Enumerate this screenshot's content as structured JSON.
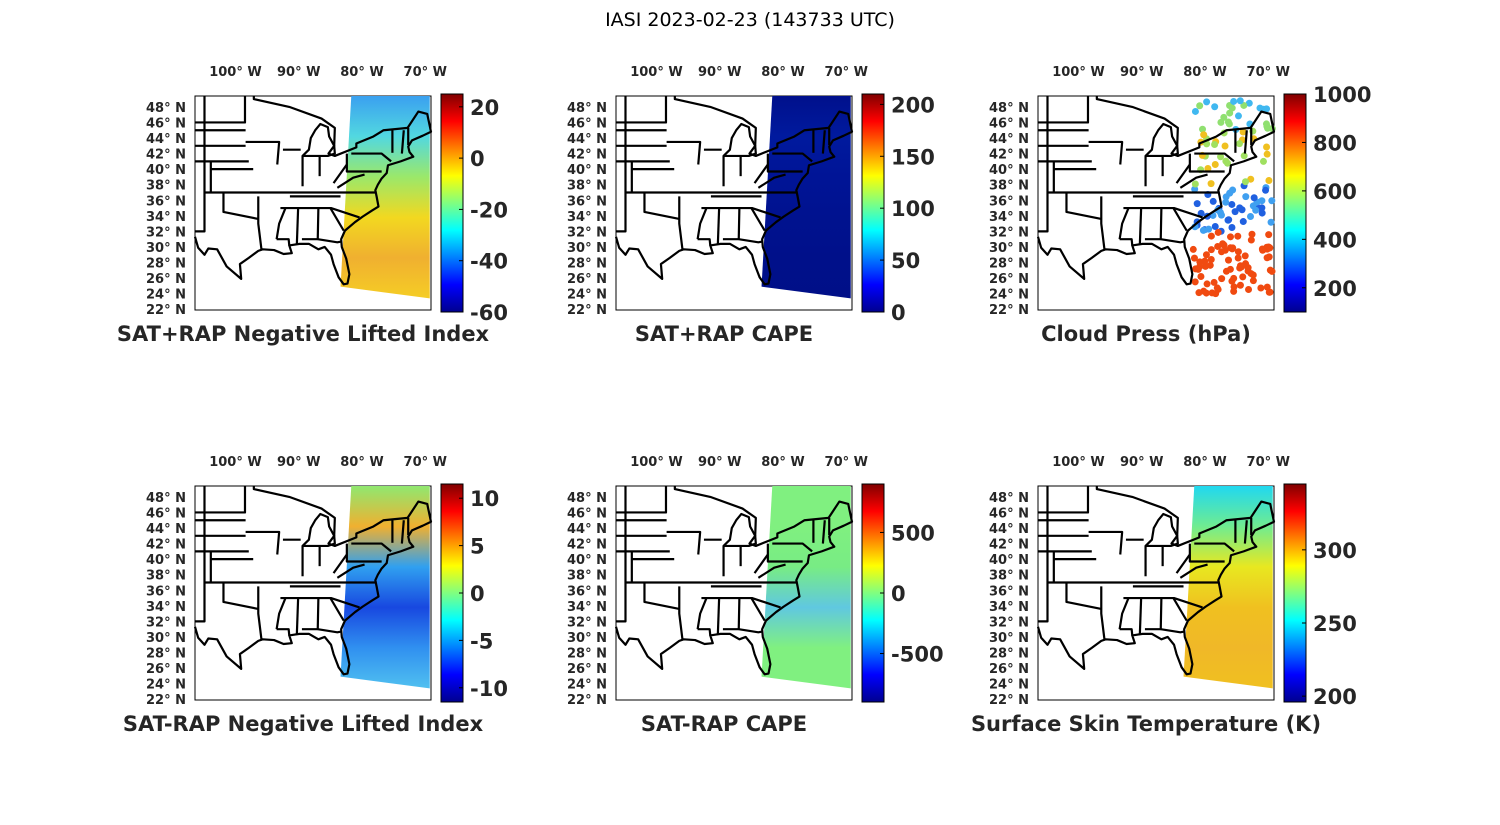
{
  "title": "IASI 2023-02-23 (143733 UTC)",
  "chart_data": [
    {
      "type": "scatter",
      "title": "SAT+RAP Negative Lifted Index",
      "lon_ticks": [
        "100° W",
        "90° W",
        "80° W",
        "70° W"
      ],
      "lat_ticks": [
        "48° N",
        "46° N",
        "44° N",
        "42° N",
        "40° N",
        "38° N",
        "36° N",
        "34° N",
        "32° N",
        "30° N",
        "28° N",
        "26° N",
        "24° N",
        "22° N"
      ],
      "colorbar": {
        "colormap": "jet",
        "range": [
          -60,
          25
        ],
        "ticks": [
          20,
          0,
          -20,
          -40,
          -60
        ],
        "tick_labels": [
          "20",
          "0",
          "-20",
          "-40",
          "-60"
        ]
      },
      "swath_colors": [
        "#3aa0f0",
        "#52d8e0",
        "#9be86a",
        "#f2d820",
        "#f0b030",
        "#f5cd25"
      ]
    },
    {
      "type": "scatter",
      "title": "SAT+RAP CAPE",
      "lon_ticks": [
        "100° W",
        "90° W",
        "80° W",
        "70° W"
      ],
      "lat_ticks": [
        "48° N",
        "46° N",
        "44° N",
        "42° N",
        "40° N",
        "38° N",
        "36° N",
        "34° N",
        "32° N",
        "30° N",
        "28° N",
        "26° N",
        "24° N",
        "22° N"
      ],
      "colorbar": {
        "colormap": "jet",
        "range": [
          0,
          210
        ],
        "ticks": [
          200,
          150,
          100,
          50,
          0
        ],
        "tick_labels": [
          "200",
          "150",
          "100",
          "50",
          "0"
        ]
      },
      "swath_colors": [
        "#00108c",
        "#001a9e",
        "#001496",
        "#00128f",
        "#00108a",
        "#000f88"
      ]
    },
    {
      "type": "scatter",
      "title": "Cloud Press (hPa)",
      "lon_ticks": [
        "100° W",
        "90° W",
        "80° W",
        "70° W"
      ],
      "lat_ticks": [
        "48° N",
        "46° N",
        "44° N",
        "42° N",
        "40° N",
        "38° N",
        "36° N",
        "34° N",
        "32° N",
        "30° N",
        "28° N",
        "26° N",
        "24° N",
        "22° N"
      ],
      "colorbar": {
        "colormap": "jet",
        "range": [
          100,
          1000
        ],
        "ticks": [
          1000,
          800,
          600,
          400,
          200
        ],
        "tick_labels": [
          "1000",
          "800",
          "600",
          "400",
          "200"
        ]
      },
      "swath_colors": [
        "#40b8f0",
        "#90e070",
        "#f0c020",
        "#2060e0",
        "#f04010",
        "#f05a10"
      ]
    },
    {
      "type": "scatter",
      "title": "SAT-RAP Negative Lifted Index",
      "lon_ticks": [
        "100° W",
        "90° W",
        "80° W",
        "70° W"
      ],
      "lat_ticks": [
        "48° N",
        "46° N",
        "44° N",
        "42° N",
        "40° N",
        "38° N",
        "36° N",
        "34° N",
        "32° N",
        "30° N",
        "28° N",
        "26° N",
        "24° N",
        "22° N"
      ],
      "colorbar": {
        "colormap": "jet",
        "range": [
          -11.5,
          11.5
        ],
        "ticks": [
          10,
          5,
          0,
          -5,
          -10
        ],
        "tick_labels": [
          "10",
          "5",
          "0",
          "-5",
          "-10"
        ]
      },
      "swath_colors": [
        "#90e870",
        "#f0b030",
        "#30a0f0",
        "#1848e0",
        "#3090f0",
        "#50c0f0"
      ]
    },
    {
      "type": "scatter",
      "title": "SAT-RAP CAPE",
      "lon_ticks": [
        "100° W",
        "90° W",
        "80° W",
        "70° W"
      ],
      "lat_ticks": [
        "48° N",
        "46° N",
        "44° N",
        "42° N",
        "40° N",
        "38° N",
        "36° N",
        "34° N",
        "32° N",
        "30° N",
        "28° N",
        "26° N",
        "24° N",
        "22° N"
      ],
      "colorbar": {
        "colormap": "jet",
        "range": [
          -900,
          900
        ],
        "ticks": [
          500,
          0,
          -500
        ],
        "tick_labels": [
          "500",
          "0",
          "-500"
        ]
      },
      "swath_colors": [
        "#80f080",
        "#80f080",
        "#78ec84",
        "#60c8e0",
        "#80f080",
        "#80f080"
      ]
    },
    {
      "type": "scatter",
      "title": "Surface Skin Temperature (K)",
      "lon_ticks": [
        "100° W",
        "90° W",
        "80° W",
        "70° W"
      ],
      "lat_ticks": [
        "48° N",
        "46° N",
        "44° N",
        "42° N",
        "40° N",
        "38° N",
        "36° N",
        "34° N",
        "32° N",
        "30° N",
        "28° N",
        "26° N",
        "24° N",
        "22° N"
      ],
      "colorbar": {
        "colormap": "jet",
        "range": [
          196,
          345
        ],
        "ticks": [
          300,
          250,
          200
        ],
        "tick_labels": [
          "300",
          "250",
          "200"
        ]
      },
      "swath_colors": [
        "#20d8f0",
        "#70ec90",
        "#e8e820",
        "#f0c020",
        "#f0b828",
        "#f0c020"
      ]
    }
  ]
}
